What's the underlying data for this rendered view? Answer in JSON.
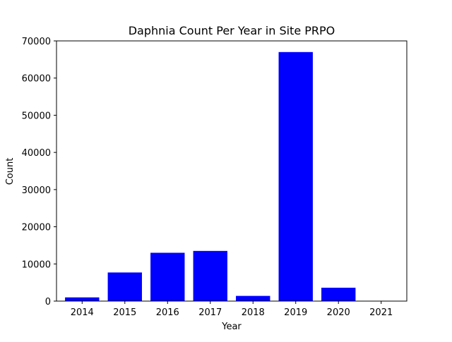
{
  "chart_data": {
    "type": "bar",
    "title": "Daphnia Count Per Year in Site PRPO",
    "xlabel": "Year",
    "ylabel": "Count",
    "categories": [
      "2014",
      "2015",
      "2016",
      "2017",
      "2018",
      "2019",
      "2020",
      "2021"
    ],
    "values": [
      1000,
      7700,
      13000,
      13500,
      1400,
      67000,
      3600,
      0
    ],
    "ylim": [
      0,
      70000
    ],
    "yticks": [
      0,
      10000,
      20000,
      30000,
      40000,
      50000,
      60000,
      70000
    ],
    "ytick_labels": [
      "0",
      "10000",
      "20000",
      "30000",
      "40000",
      "50000",
      "60000",
      "70000"
    ],
    "bar_color": "#0000ff",
    "grid": false,
    "legend": "none"
  }
}
